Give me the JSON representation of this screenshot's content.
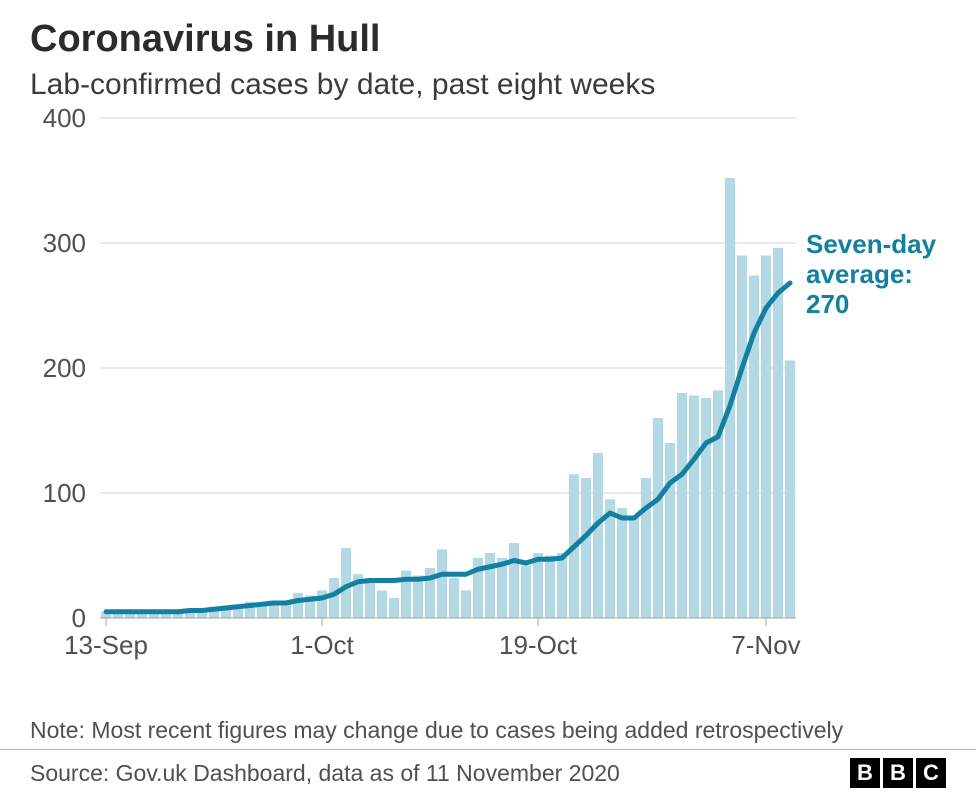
{
  "title": "Coronavirus in Hull",
  "subtitle": "Lab-confirmed cases by date, past eight weeks",
  "note": "Note: Most recent figures may change due to cases being added retrospectively",
  "source": "Source: Gov.uk Dashboard, data as of 11 November 2020",
  "logo_letters": [
    "B",
    "B",
    "C"
  ],
  "chart": {
    "type": "bar+line",
    "background_color": "#ffffff",
    "grid_color": "#d5d5d5",
    "axis_color": "#a0a0a0",
    "bar_color": "#b5d8e5",
    "line_color": "#1380a1",
    "line_width": 5,
    "annotation_color": "#1380a1",
    "ylim": [
      0,
      400
    ],
    "ytick_step": 100,
    "yticks": [
      0,
      100,
      200,
      300,
      400
    ],
    "x_start": "13-Sep",
    "x_end": "9-Nov",
    "x_tick_labels": [
      "13-Sep",
      "1-Oct",
      "19-Oct",
      "7-Nov"
    ],
    "x_tick_indices": [
      0,
      18,
      36,
      55
    ],
    "bar_gap_ratio": 0.15,
    "bar_values": [
      5,
      4,
      6,
      5,
      6,
      4,
      5,
      6,
      7,
      9,
      10,
      11,
      13,
      10,
      14,
      13,
      20,
      18,
      22,
      32,
      56,
      35,
      28,
      22,
      16,
      38,
      34,
      40,
      55,
      32,
      22,
      48,
      52,
      48,
      60,
      42,
      52,
      50,
      52,
      115,
      112,
      132,
      95,
      88,
      82,
      112,
      160,
      140,
      180,
      178,
      176,
      182,
      352,
      290,
      274,
      290,
      296,
      206
    ],
    "avg_line_values": [
      5,
      5,
      5,
      5,
      5,
      5,
      5,
      6,
      6,
      7,
      8,
      9,
      10,
      11,
      12,
      12,
      14,
      15,
      16,
      19,
      25,
      29,
      30,
      30,
      30,
      31,
      31,
      32,
      35,
      35,
      35,
      39,
      41,
      43,
      46,
      44,
      47,
      47,
      48,
      57,
      66,
      76,
      84,
      80,
      80,
      88,
      95,
      108,
      115,
      127,
      140,
      145,
      170,
      200,
      228,
      248,
      260,
      268
    ],
    "annotation": {
      "line1": "Seven-day",
      "line2": "average:",
      "line3": "270"
    },
    "label_fontsize": 26
  }
}
